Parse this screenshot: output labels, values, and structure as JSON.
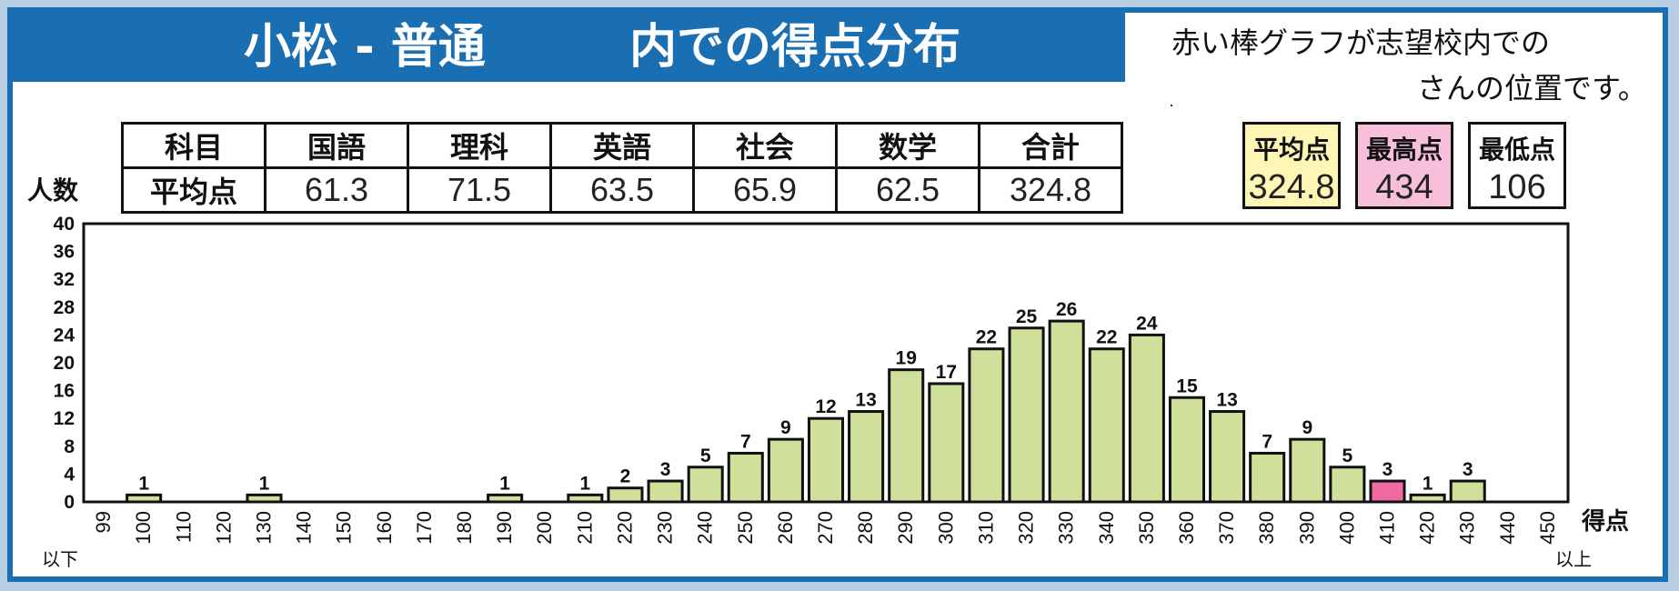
{
  "header": {
    "school": "小松 - 普通",
    "subtitle": "内での得点分布",
    "note_line1": "赤い棒グラフが志望校内での",
    "note_line2": "さんの位置です。"
  },
  "score_table": {
    "col_header": "科目",
    "row_header": "平均点",
    "subjects": [
      "国語",
      "理科",
      "英語",
      "社会",
      "数学",
      "合計"
    ],
    "averages": [
      "61.3",
      "71.5",
      "63.5",
      "65.9",
      "62.5",
      "324.8"
    ]
  },
  "stats": {
    "average": {
      "label": "平均点",
      "value": "324.8"
    },
    "highest": {
      "label": "最高点",
      "value": "434"
    },
    "lowest": {
      "label": "最低点",
      "value": "106"
    }
  },
  "colors": {
    "bar": "#cfe09a",
    "highlight": "#ee6aa0",
    "average_box": "#fdf6b4",
    "highest_box": "#f7bfd9",
    "title_bg": "#1a6fb3"
  },
  "chart_data": {
    "type": "bar",
    "title": "小松 - 普通 内での得点分布",
    "ylabel": "人数",
    "xlabel": "得点",
    "ylim": [
      0,
      40
    ],
    "yticks": [
      0,
      4,
      8,
      12,
      16,
      20,
      24,
      28,
      32,
      36,
      40
    ],
    "categories": [
      "99",
      "100",
      "110",
      "120",
      "130",
      "140",
      "150",
      "160",
      "170",
      "180",
      "190",
      "200",
      "210",
      "220",
      "230",
      "240",
      "250",
      "260",
      "270",
      "280",
      "290",
      "300",
      "310",
      "320",
      "330",
      "340",
      "350",
      "360",
      "370",
      "380",
      "390",
      "400",
      "410",
      "420",
      "430",
      "440",
      "450"
    ],
    "values": [
      0,
      1,
      0,
      0,
      1,
      0,
      0,
      0,
      0,
      0,
      1,
      0,
      1,
      2,
      3,
      5,
      7,
      9,
      12,
      13,
      19,
      17,
      22,
      25,
      26,
      22,
      24,
      15,
      13,
      7,
      9,
      5,
      3,
      1,
      3,
      0,
      0
    ],
    "highlight_category": "410",
    "below_label": "以下",
    "above_label": "以上"
  }
}
